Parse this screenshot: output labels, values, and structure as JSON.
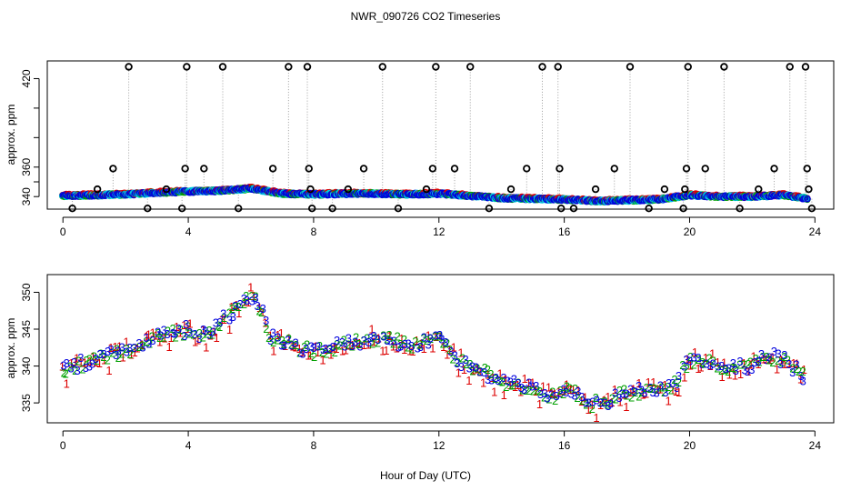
{
  "title": "NWR_090726  CO2 Timeseries",
  "xlabel": "Hour of Day (UTC)",
  "colors": {
    "series1": "#dd0000",
    "series2": "#00a000",
    "series3": "#0000dd",
    "overlay": "#00c8e0",
    "axis": "#000000",
    "spike_line": "#a0a0a0"
  },
  "chart_data": [
    {
      "type": "scatter",
      "name": "panel-top",
      "ylabel": "approx. ppm",
      "xlim": [
        -0.5,
        24.6
      ],
      "ylim": [
        331.5,
        432
      ],
      "x_ticks": [
        0,
        4,
        8,
        12,
        16,
        20,
        24
      ],
      "x_tick_labels": [
        "0",
        "4",
        "8",
        "12",
        "16",
        "20",
        "24"
      ],
      "y_ticks": [
        340,
        360,
        420
      ],
      "y_tick_labels": [
        "340",
        "360",
        "420"
      ],
      "y_minor_ticks": [
        350,
        380,
        400
      ],
      "baseline": [
        [
          0,
          340.5
        ],
        [
          1,
          341
        ],
        [
          2,
          341.5
        ],
        [
          3,
          342.5
        ],
        [
          4,
          343.5
        ],
        [
          5,
          344
        ],
        [
          6,
          345.5
        ],
        [
          7,
          342
        ],
        [
          8,
          341.5
        ],
        [
          9,
          342
        ],
        [
          10,
          342
        ],
        [
          11,
          341.5
        ],
        [
          12,
          342
        ],
        [
          13,
          340.5
        ],
        [
          14,
          339
        ],
        [
          15,
          338.5
        ],
        [
          16,
          338
        ],
        [
          17,
          337
        ],
        [
          18,
          337.5
        ],
        [
          19,
          338
        ],
        [
          20,
          341
        ],
        [
          21,
          340
        ],
        [
          22,
          340
        ],
        [
          23,
          341
        ],
        [
          23.8,
          338.5
        ]
      ],
      "outliers": [
        {
          "x": 0.3,
          "y": 332
        },
        {
          "x": 1.1,
          "y": 345
        },
        {
          "x": 1.6,
          "y": 359
        },
        {
          "x": 2.1,
          "y": 428
        },
        {
          "x": 2.7,
          "y": 332
        },
        {
          "x": 3.3,
          "y": 345
        },
        {
          "x": 3.8,
          "y": 332
        },
        {
          "x": 3.9,
          "y": 359
        },
        {
          "x": 3.95,
          "y": 428
        },
        {
          "x": 4.5,
          "y": 359
        },
        {
          "x": 5.1,
          "y": 428
        },
        {
          "x": 5.6,
          "y": 332
        },
        {
          "x": 6.7,
          "y": 359
        },
        {
          "x": 7.2,
          "y": 428
        },
        {
          "x": 7.8,
          "y": 428
        },
        {
          "x": 7.85,
          "y": 359
        },
        {
          "x": 7.9,
          "y": 345
        },
        {
          "x": 7.95,
          "y": 332
        },
        {
          "x": 8.6,
          "y": 332
        },
        {
          "x": 9.1,
          "y": 345
        },
        {
          "x": 9.6,
          "y": 359
        },
        {
          "x": 10.2,
          "y": 428
        },
        {
          "x": 10.7,
          "y": 332
        },
        {
          "x": 11.6,
          "y": 345
        },
        {
          "x": 11.8,
          "y": 359
        },
        {
          "x": 11.9,
          "y": 428
        },
        {
          "x": 12.5,
          "y": 359
        },
        {
          "x": 13.0,
          "y": 428
        },
        {
          "x": 13.6,
          "y": 332
        },
        {
          "x": 14.3,
          "y": 345
        },
        {
          "x": 14.8,
          "y": 359
        },
        {
          "x": 15.3,
          "y": 428
        },
        {
          "x": 15.8,
          "y": 428
        },
        {
          "x": 15.85,
          "y": 359
        },
        {
          "x": 15.9,
          "y": 332
        },
        {
          "x": 16.3,
          "y": 332
        },
        {
          "x": 17.0,
          "y": 345
        },
        {
          "x": 17.6,
          "y": 359
        },
        {
          "x": 18.1,
          "y": 428
        },
        {
          "x": 18.7,
          "y": 332
        },
        {
          "x": 19.2,
          "y": 345
        },
        {
          "x": 19.8,
          "y": 332
        },
        {
          "x": 19.85,
          "y": 345
        },
        {
          "x": 19.9,
          "y": 359
        },
        {
          "x": 19.95,
          "y": 428
        },
        {
          "x": 20.5,
          "y": 359
        },
        {
          "x": 21.1,
          "y": 428
        },
        {
          "x": 21.6,
          "y": 332
        },
        {
          "x": 22.2,
          "y": 345
        },
        {
          "x": 22.7,
          "y": 359
        },
        {
          "x": 23.2,
          "y": 428
        },
        {
          "x": 23.7,
          "y": 428
        },
        {
          "x": 23.75,
          "y": 359
        },
        {
          "x": 23.8,
          "y": 345
        },
        {
          "x": 23.9,
          "y": 332
        }
      ]
    },
    {
      "type": "scatter",
      "name": "panel-bottom",
      "ylabel": "approx. ppm",
      "xlim": [
        -0.5,
        24.6
      ],
      "ylim": [
        332.3,
        352.4
      ],
      "x_ticks": [
        0,
        4,
        8,
        12,
        16,
        20,
        24
      ],
      "x_tick_labels": [
        "0",
        "4",
        "8",
        "12",
        "16",
        "20",
        "24"
      ],
      "y_ticks": [
        335,
        340,
        345,
        350
      ],
      "y_tick_labels": [
        "335",
        "340",
        "345",
        "350"
      ],
      "series_symbols": [
        "1",
        "2",
        "3"
      ],
      "baseline": [
        [
          0,
          339.5
        ],
        [
          1,
          341
        ],
        [
          2,
          342
        ],
        [
          3,
          344
        ],
        [
          4,
          345
        ],
        [
          4.6,
          344
        ],
        [
          5.2,
          346.5
        ],
        [
          6,
          349.5
        ],
        [
          6.3,
          348
        ],
        [
          6.6,
          344
        ],
        [
          7.3,
          343
        ],
        [
          8,
          342
        ],
        [
          9,
          343
        ],
        [
          10,
          344
        ],
        [
          11,
          343
        ],
        [
          12,
          343.5
        ],
        [
          12.6,
          341
        ],
        [
          13,
          340
        ],
        [
          14,
          338
        ],
        [
          15,
          337
        ],
        [
          15.7,
          336
        ],
        [
          16,
          337
        ],
        [
          16.4,
          336
        ],
        [
          16.8,
          335
        ],
        [
          17.3,
          335
        ],
        [
          18,
          336.5
        ],
        [
          19,
          337
        ],
        [
          19.5,
          337
        ],
        [
          20,
          341
        ],
        [
          20.5,
          341
        ],
        [
          21,
          340
        ],
        [
          22,
          340
        ],
        [
          22.4,
          341.5
        ],
        [
          23,
          341
        ],
        [
          23.7,
          338.5
        ]
      ]
    }
  ]
}
